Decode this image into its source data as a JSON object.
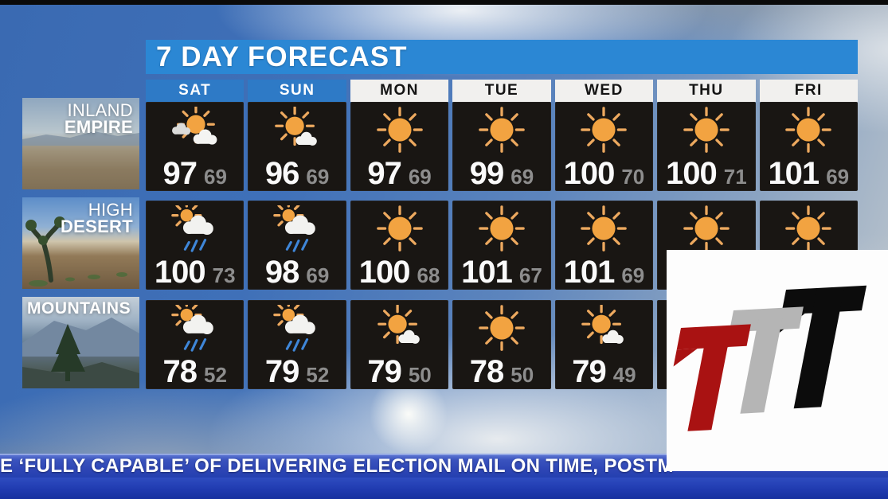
{
  "title": "7 DAY FORECAST",
  "days": [
    "SAT",
    "SUN",
    "MON",
    "TUE",
    "WED",
    "THU",
    "FRI"
  ],
  "ticker": {
    "text": "E ‘FULLY CAPABLE’ OF DELIVERING ELECTION MAIL ON TIME, POSTM"
  },
  "regions": [
    {
      "label_line1": "INLAND",
      "label_line2": "EMPIRE",
      "cells": [
        {
          "day": "SAT",
          "icon": "partly-cloudy",
          "high": "97",
          "low": "69"
        },
        {
          "day": "SUN",
          "icon": "mostly-sunny",
          "high": "96",
          "low": "69"
        },
        {
          "day": "MON",
          "icon": "sunny",
          "high": "97",
          "low": "69"
        },
        {
          "day": "TUE",
          "icon": "sunny",
          "high": "99",
          "low": "69"
        },
        {
          "day": "WED",
          "icon": "sunny",
          "high": "100",
          "low": "70"
        },
        {
          "day": "THU",
          "icon": "sunny",
          "high": "100",
          "low": "71"
        },
        {
          "day": "FRI",
          "icon": "sunny",
          "high": "101",
          "low": "69"
        }
      ]
    },
    {
      "label_line1": "HIGH",
      "label_line2": "DESERT",
      "cells": [
        {
          "day": "SAT",
          "icon": "showers",
          "high": "100",
          "low": "73"
        },
        {
          "day": "SUN",
          "icon": "showers",
          "high": "98",
          "low": "69"
        },
        {
          "day": "MON",
          "icon": "sunny",
          "high": "100",
          "low": "68"
        },
        {
          "day": "TUE",
          "icon": "sunny",
          "high": "101",
          "low": "67"
        },
        {
          "day": "WED",
          "icon": "sunny",
          "high": "101",
          "low": "69"
        },
        {
          "day": "THU",
          "icon": "sunny",
          "high": "",
          "low": ""
        },
        {
          "day": "FRI",
          "icon": "sunny",
          "high": "",
          "low": ""
        }
      ]
    },
    {
      "label_line1": "MOUNTAINS",
      "label_line2": "",
      "cells": [
        {
          "day": "SAT",
          "icon": "showers",
          "high": "78",
          "low": "52"
        },
        {
          "day": "SUN",
          "icon": "showers",
          "high": "79",
          "low": "52"
        },
        {
          "day": "MON",
          "icon": "mostly-sunny",
          "high": "79",
          "low": "50"
        },
        {
          "day": "TUE",
          "icon": "sunny",
          "high": "78",
          "low": "50"
        },
        {
          "day": "WED",
          "icon": "mostly-sunny",
          "high": "79",
          "low": "49"
        },
        {
          "day": "THU",
          "icon": "",
          "high": "",
          "low": ""
        },
        {
          "day": "FRI",
          "icon": "",
          "high": "",
          "low": ""
        }
      ]
    }
  ],
  "colors": {
    "banner_blue": "#2b87d4",
    "weekend_header_blue": "#2e7ac6",
    "weekday_header_bg": "#f1f0ee",
    "cell_bg": "#191613",
    "high_temp": "#fafafa",
    "low_temp": "#8d8d8d",
    "sun_orange": "#f2a341",
    "sun_ray": "#eda95f",
    "rain_blue": "#3f86d8",
    "ticker_blue": "#2c44b4",
    "logo_red": "#a91212",
    "logo_gray": "#b5b5b5",
    "logo_black": "#0c0c0c"
  },
  "chart_data": {
    "type": "table",
    "title": "7 DAY FORECAST",
    "columns": [
      "SAT",
      "SUN",
      "MON",
      "TUE",
      "WED",
      "THU",
      "FRI"
    ],
    "rows": [
      {
        "region": "INLAND EMPIRE",
        "high": [
          97,
          96,
          97,
          99,
          100,
          100,
          101
        ],
        "low": [
          69,
          69,
          69,
          69,
          70,
          71,
          69
        ],
        "conditions": [
          "partly-cloudy",
          "mostly-sunny",
          "sunny",
          "sunny",
          "sunny",
          "sunny",
          "sunny"
        ]
      },
      {
        "region": "HIGH DESERT",
        "high": [
          100,
          98,
          100,
          101,
          101,
          null,
          null
        ],
        "low": [
          73,
          69,
          68,
          67,
          69,
          null,
          null
        ],
        "conditions": [
          "showers",
          "showers",
          "sunny",
          "sunny",
          "sunny",
          "sunny",
          "sunny"
        ]
      },
      {
        "region": "MOUNTAINS",
        "high": [
          78,
          79,
          79,
          78,
          79,
          null,
          null
        ],
        "low": [
          52,
          52,
          50,
          50,
          49,
          null,
          null
        ],
        "conditions": [
          "showers",
          "showers",
          "mostly-sunny",
          "sunny",
          "mostly-sunny",
          null,
          null
        ]
      }
    ]
  }
}
